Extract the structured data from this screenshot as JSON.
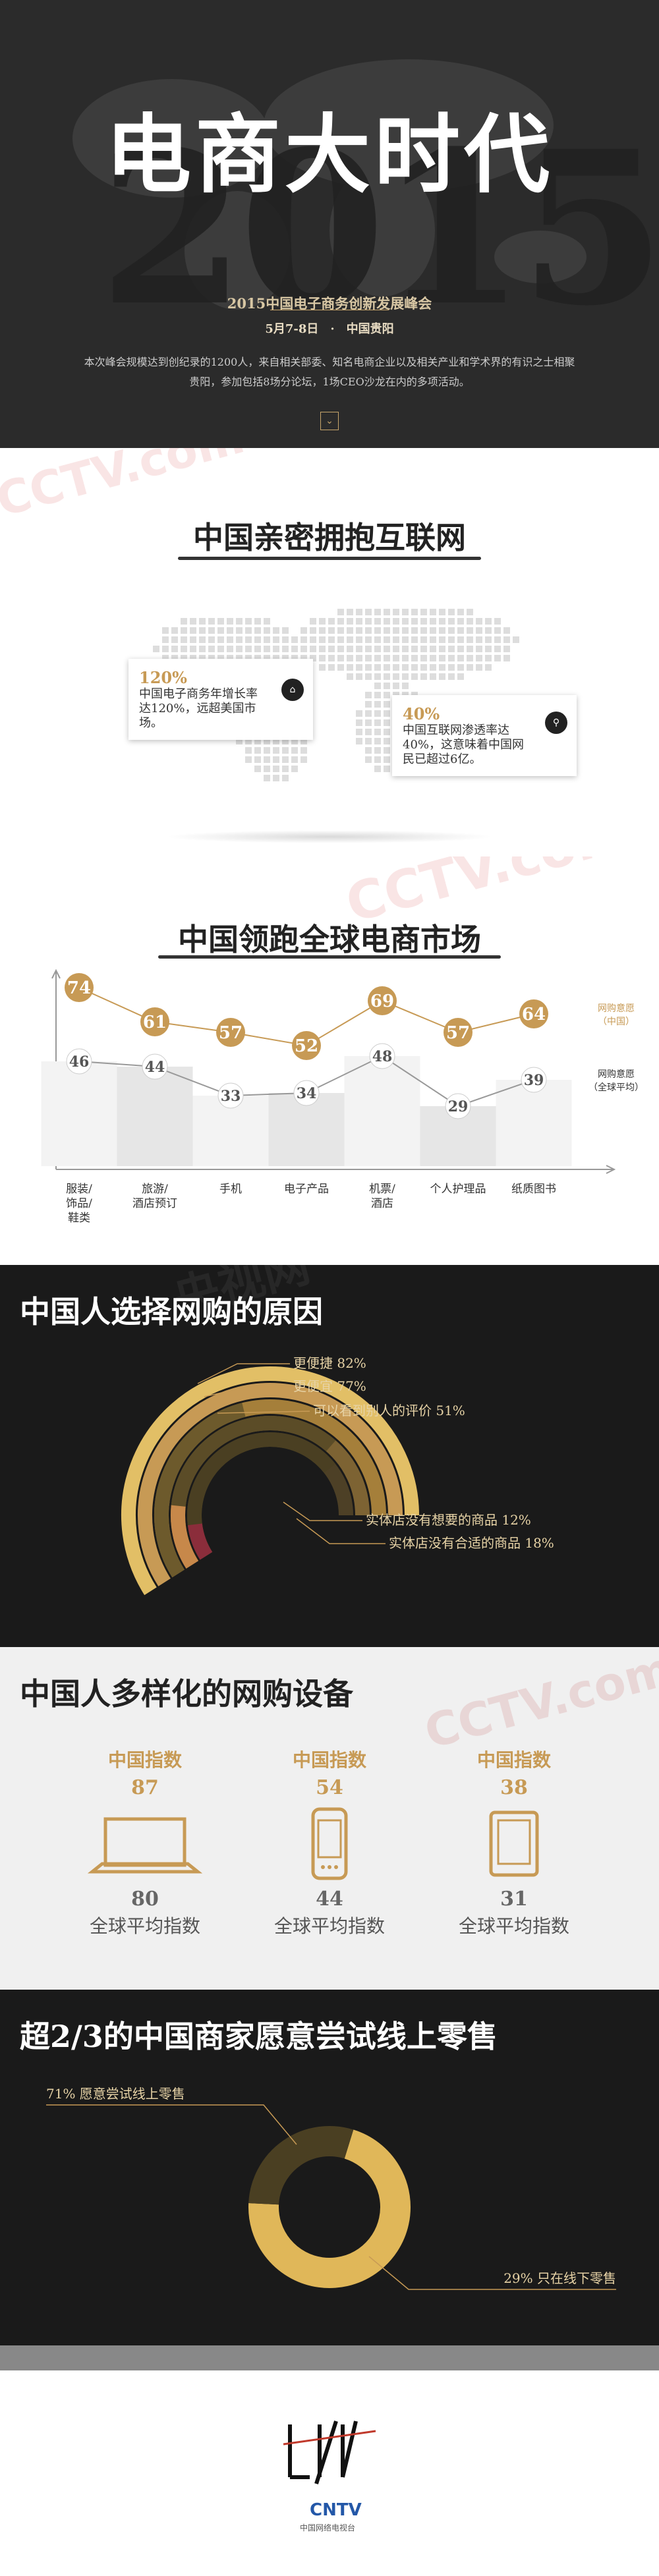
{
  "hero": {
    "year_bg": "2015",
    "title": "电商大时代",
    "subtitle": "2015中国电子商务创新发展峰会",
    "date": "5月7-8日　·　中国贵阳",
    "desc": "本次峰会规模达到创纪录的1200人，来自相关部委、知名电商企业以及相关产业和学术界的有识之士相聚贵阳，参加包括8场分论坛，1场CEO沙龙在内的多项活动。",
    "down_icon": "chevron-down-icon"
  },
  "embrace": {
    "title": "中国亲密拥抱互联网",
    "card1": {
      "pct": "120%",
      "text": "中国电子商务年增长率达120%，远超美国市场。",
      "icon": "shopping-icon"
    },
    "card2": {
      "pct": "40%",
      "text": "中国互联网渗透率达40%，这意味着中国网民已超过6亿。",
      "icon": "network-icon"
    }
  },
  "market": {
    "title": "中国领跑全球电商市场",
    "legend_cn": "网购意愿（中国）",
    "legend_global": "网购意愿（全球平均）"
  },
  "chart_data": {
    "type": "line",
    "categories": [
      "服装/饰品/鞋类",
      "旅游/酒店预订",
      "手机",
      "电子产品",
      "机票/酒店",
      "个人护理品",
      "纸质图书"
    ],
    "series": [
      {
        "name": "网购意愿（中国）",
        "values": [
          74,
          61,
          57,
          52,
          69,
          57,
          64
        ]
      },
      {
        "name": "网购意愿（全球平均）",
        "values": [
          46,
          44,
          33,
          34,
          48,
          29,
          39
        ]
      }
    ],
    "colors": {
      "china": "#c79a55",
      "global": "#555555"
    }
  },
  "reasons": {
    "title": "中国人选择网购的原因",
    "items": [
      {
        "label": "更便捷 82%",
        "value": 82,
        "color": "#4a3f22"
      },
      {
        "label": "更便宜 77%",
        "value": 77,
        "color": "#5b4c27"
      },
      {
        "label": "可以看到别人的评价 51%",
        "value": 51,
        "color": "#6d5a2c"
      },
      {
        "label": "实体店没有想要的商品 12%",
        "value": 12,
        "color": "#8b2d3b"
      },
      {
        "label": "实体店没有合适的商品 18%",
        "value": 18,
        "color": "#c7884a"
      }
    ]
  },
  "devices": {
    "title": "中国人多样化的网购设备",
    "items": [
      {
        "label": "中国指数",
        "value": "87",
        "global_value": "80",
        "global_label": "全球平均指数",
        "icon": "laptop-icon"
      },
      {
        "label": "中国指数",
        "value": "54",
        "global_value": "44",
        "global_label": "全球平均指数",
        "icon": "phone-icon"
      },
      {
        "label": "中国指数",
        "value": "38",
        "global_value": "31",
        "global_label": "全球平均指数",
        "icon": "tablet-icon"
      }
    ]
  },
  "retail": {
    "title": "超2/3的中国商家愿意尝试线上零售",
    "online_label": "71% 愿意尝试线上零售",
    "offline_label": "29% 只在线下零售",
    "online_pct": 71,
    "offline_pct": 29
  },
  "footer": {
    "cctv": "CNTV",
    "cctv_sub": "中国网络电视台"
  }
}
